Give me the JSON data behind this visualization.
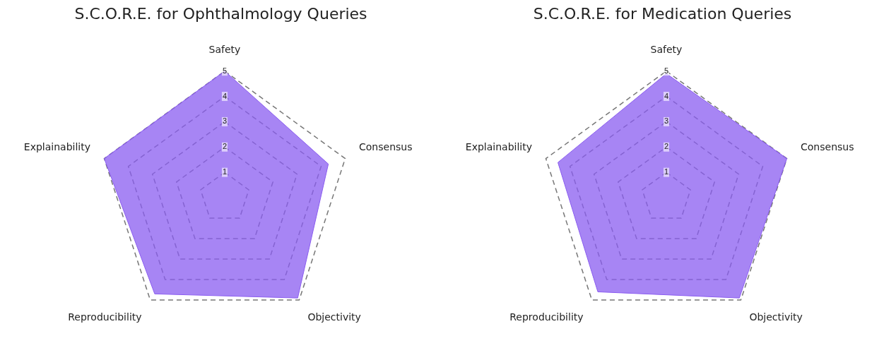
{
  "chart_data": [
    {
      "type": "radar",
      "title": "S.C.O.R.E. for Ophthalmology Queries",
      "categories": [
        "Safety",
        "Consensus",
        "Objectivity",
        "Reproducibility",
        "Explainability"
      ],
      "series": [
        {
          "color": "#8a5cf0",
          "values": [
            5,
            4.3,
            4.9,
            4.7,
            5
          ]
        }
      ],
      "ylim": [
        0,
        5
      ],
      "yticks": [
        1,
        2,
        3,
        4,
        5
      ],
      "grid": true,
      "legend": false,
      "marker": "none"
    },
    {
      "type": "radar",
      "title": "S.C.O.R.E. for Medication Queries",
      "categories": [
        "Safety",
        "Consensus",
        "Objectivity",
        "Reproducibility",
        "Explainability"
      ],
      "series": [
        {
          "color": "#8a5cf0",
          "values": [
            4.9,
            5,
            4.9,
            4.6,
            4.5
          ]
        }
      ],
      "ylim": [
        0,
        5
      ],
      "yticks": [
        1,
        2,
        3,
        4,
        5
      ],
      "grid": true,
      "legend": false,
      "marker": "none"
    }
  ]
}
